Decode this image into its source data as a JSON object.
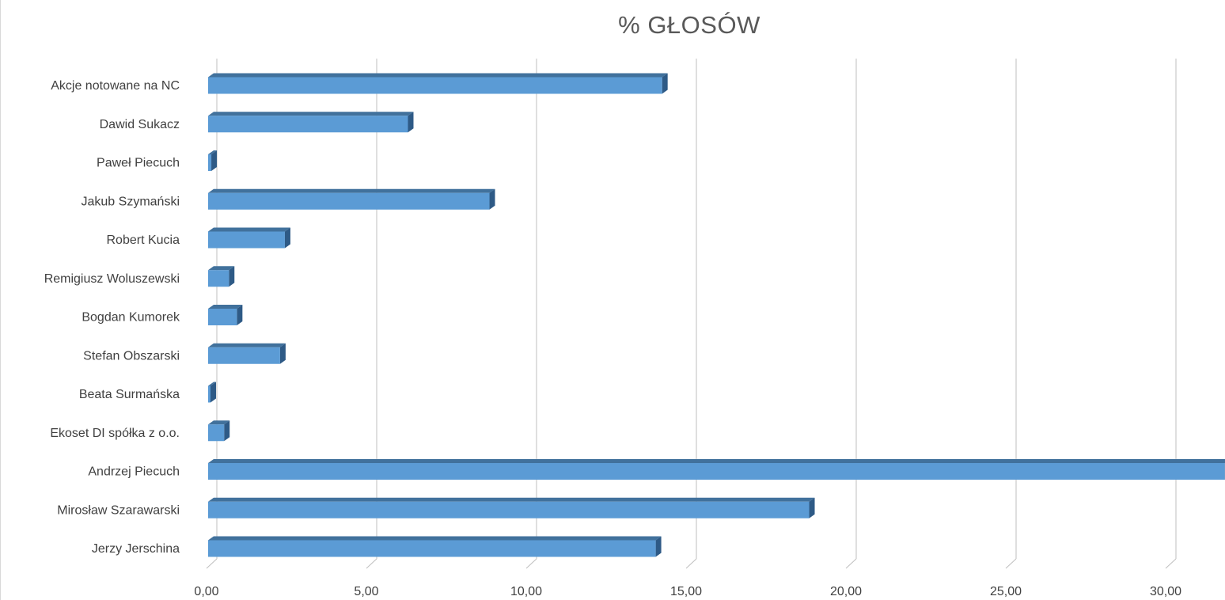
{
  "chart_data": {
    "type": "bar",
    "orientation": "horizontal",
    "style": "3d",
    "title": "% GŁOSÓW",
    "categories": [
      "Akcje notowane na NC",
      "Dawid Sukacz",
      "Paweł Piecuch",
      "Jakub Szymański",
      "Robert Kucia",
      "Remigiusz Woluszewski",
      "Bogdan Kumorek",
      "Stefan Obszarski",
      "Beata Surmańska",
      "Ekoset DI spółka z o.o.",
      "Andrzej Piecuch",
      "Mirosław Szarawarski",
      "Jerzy Jerschina"
    ],
    "values": [
      14.2,
      6.25,
      0.1,
      8.8,
      2.4,
      0.65,
      0.9,
      2.25,
      0.05,
      0.5,
      31.8,
      18.8,
      14.0
    ],
    "xlim": [
      0,
      32
    ],
    "x_ticks": [
      "0,00",
      "5,00",
      "10,00",
      "15,00",
      "20,00",
      "25,00",
      "30,00"
    ],
    "x_tick_values": [
      0,
      5,
      10,
      15,
      20,
      25,
      30
    ],
    "grid": true,
    "colors": {
      "bar_front": "#5b9bd5",
      "bar_top": "#41719c",
      "bar_side": "#2e5a86",
      "grid": "#bfbfbf"
    }
  }
}
